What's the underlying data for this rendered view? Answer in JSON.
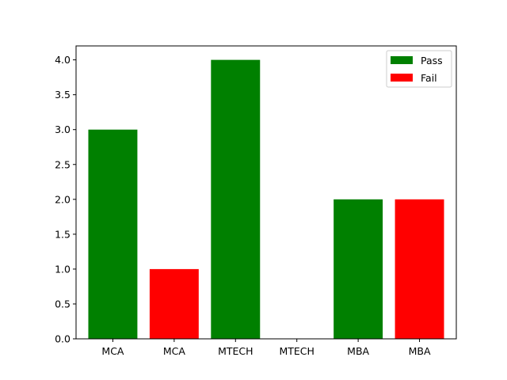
{
  "chart_data": {
    "type": "bar",
    "categories": [
      "MCA",
      "MCA",
      "MTECH",
      "MTECH",
      "MBA",
      "MBA"
    ],
    "values": [
      3,
      1,
      4,
      0,
      2,
      2
    ],
    "bar_series": [
      "Pass",
      "Fail",
      "Pass",
      "Fail",
      "Pass",
      "Fail"
    ],
    "series": [
      {
        "name": "Pass",
        "color": "#008000",
        "values": {
          "MCA": 3,
          "MTECH": 4,
          "MBA": 2
        }
      },
      {
        "name": "Fail",
        "color": "#ff0000",
        "values": {
          "MCA": 1,
          "MTECH": 0,
          "MBA": 2
        }
      }
    ],
    "y_ticks": [
      "0.0",
      "0.5",
      "1.0",
      "1.5",
      "2.0",
      "2.5",
      "3.0",
      "3.5",
      "4.0"
    ],
    "ylim": [
      0,
      4.2
    ],
    "legend": {
      "position": "top-right",
      "entries": [
        "Pass",
        "Fail"
      ]
    },
    "grid": false,
    "title": "",
    "xlabel": "",
    "ylabel": ""
  }
}
